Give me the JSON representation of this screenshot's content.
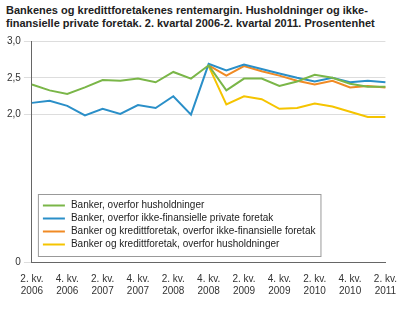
{
  "chart_data": {
    "type": "line",
    "title": "Bankenes og kredittforetakenes rentemargin. Husholdninger og ikke-finansielle private foretak. 2. kvartal 2006-2. kvartal 2011. Prosentenhet",
    "categories": [
      "2. kv. 2006",
      null,
      "4. kv. 2006",
      null,
      "2. kv. 2007",
      null,
      "4. kv. 2007",
      null,
      "2. kv. 2008",
      null,
      "4. kv. 2008",
      null,
      "2. kv. 2009",
      null,
      "4. kv. 2009",
      null,
      "2. kv. 2010",
      null,
      "4. kv. 2010",
      null,
      "2. kv. 2011"
    ],
    "series": [
      {
        "name": "Banker, overfor husholdninger",
        "color": "#7ab648",
        "values": [
          2.41,
          2.33,
          2.28,
          2.37,
          2.47,
          2.46,
          2.49,
          2.44,
          2.58,
          2.49,
          2.67,
          2.33,
          2.49,
          2.49,
          2.39,
          2.45,
          2.54,
          2.5,
          2.42,
          2.38,
          2.38
        ]
      },
      {
        "name": "Banker, overfor ikke-finansielle private foretak",
        "color": "#2a8fc8",
        "values": [
          2.16,
          2.19,
          2.12,
          1.99,
          2.08,
          2.01,
          2.13,
          2.09,
          2.25,
          2.0,
          2.69,
          2.6,
          2.68,
          2.62,
          2.56,
          2.5,
          2.45,
          2.5,
          2.44,
          2.46,
          2.44
        ]
      },
      {
        "name": "Banker og kredittforetak, overfor ikke-finansielle foretak",
        "color": "#f08a24",
        "values": [
          null,
          null,
          null,
          null,
          null,
          null,
          null,
          null,
          null,
          null,
          2.67,
          2.53,
          2.66,
          2.59,
          2.53,
          2.46,
          2.41,
          2.46,
          2.37,
          2.39,
          2.37
        ]
      },
      {
        "name": "Banker og kredittforetak, overfor husholdninger",
        "color": "#f5c400",
        "values": [
          null,
          null,
          null,
          null,
          null,
          null,
          null,
          null,
          null,
          null,
          2.66,
          2.14,
          2.25,
          2.21,
          2.08,
          2.09,
          2.15,
          2.11,
          2.04,
          1.97,
          1.97
        ]
      }
    ],
    "ylim": [
      0,
      3
    ],
    "yticks": [
      0,
      {
        "value": 2,
        "label": "2,0"
      },
      {
        "value": 2.5,
        "label": "2,5"
      },
      {
        "value": 3,
        "label": "3,0"
      }
    ],
    "grid": true,
    "legend": "bottom-left"
  }
}
